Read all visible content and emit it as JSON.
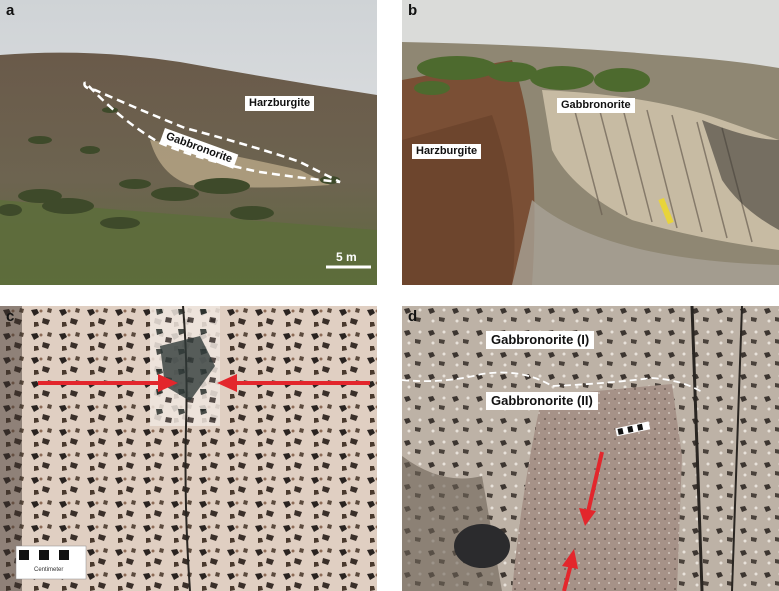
{
  "figure": {
    "panels": [
      {
        "label": "a",
        "labels": {
          "harzburgite": "Harzburgite",
          "gabbronorite": "Gabbronorite"
        },
        "scale": "5 m"
      },
      {
        "label": "b",
        "labels": {
          "gabbronorite": "Gabbronorite",
          "harzburgite": "Harzburgite"
        }
      },
      {
        "label": "c",
        "card_text": "Centimeter"
      },
      {
        "label": "d",
        "labels": {
          "upper": "Gabbronorite (I)",
          "lower": "Gabbronorite (II)"
        }
      }
    ],
    "colors": {
      "arrow": "#e3262c",
      "dashed_boundary": "#ffffff",
      "hammer": "#e8d43a"
    }
  }
}
